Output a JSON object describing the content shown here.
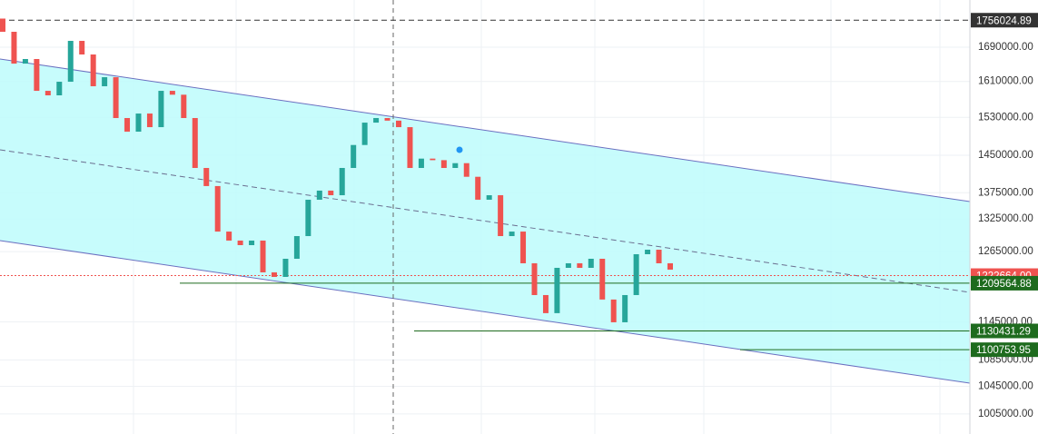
{
  "chart_data": {
    "type": "candlestick",
    "log_scale": true,
    "ylim": [
      976800,
      1807000
    ],
    "yticks": [
      {
        "value": 1690000,
        "label": "1690000.00"
      },
      {
        "value": 1610000,
        "label": "1610000.00"
      },
      {
        "value": 1530000,
        "label": "1530000.00"
      },
      {
        "value": 1450000,
        "label": "1450000.00"
      },
      {
        "value": 1375000,
        "label": "1375000.00"
      },
      {
        "value": 1325000,
        "label": "1325000.00"
      },
      {
        "value": 1265000,
        "label": "1265000.00"
      },
      {
        "value": 1145000,
        "label": "1145000.00"
      },
      {
        "value": 1085000,
        "label": "1085000.00"
      },
      {
        "value": 1045000,
        "label": "1045000.00"
      },
      {
        "value": 1005000,
        "label": "1005000.00"
      }
    ],
    "grid": true,
    "up_color": "#26a69a",
    "down_color": "#ef5350",
    "open": [
      1760000,
      1727400,
      1651200,
      1662000,
      1588700,
      1578600,
      1609300,
      1705300,
      1672700,
      1599100,
      1619700,
      1528600,
      1499400,
      1538400,
      1509000,
      1588700,
      1580000,
      1528600,
      1424200,
      1388100,
      1301400,
      1284900,
      1276600,
      1284900,
      1228300,
      1220400,
      1252200,
      1293100,
      1361500,
      1379200,
      1370200,
      1424200,
      1471300,
      1518700,
      1528600,
      1523000,
      1509000,
      1424200,
      1443200,
      1440000,
      1424200,
      1433900,
      1406500,
      1361500,
      1370200,
      1293100,
      1301400,
      1244200,
      1189400,
      1159300,
      1236200,
      1244200,
      1236200,
      1252200,
      1181900,
      1144400,
      1189400,
      1260300,
      1268400,
      1244200
    ],
    "close": [
      1727400,
      1651200,
      1662000,
      1588700,
      1578600,
      1609300,
      1705300,
      1672700,
      1599100,
      1619700,
      1528600,
      1499400,
      1538400,
      1509000,
      1588700,
      1580000,
      1528600,
      1424200,
      1388100,
      1301400,
      1284900,
      1276600,
      1284900,
      1228300,
      1220400,
      1252200,
      1293100,
      1361500,
      1379200,
      1370200,
      1424200,
      1471300,
      1518700,
      1528600,
      1523000,
      1509000,
      1424200,
      1443200,
      1440000,
      1424200,
      1433900,
      1406500,
      1361500,
      1370200,
      1293100,
      1301400,
      1244200,
      1189400,
      1159300,
      1236200,
      1244200,
      1236200,
      1252200,
      1181900,
      1144400,
      1189400,
      1260300,
      1268400,
      1244200,
      1233100
    ],
    "price_lines": [
      {
        "value": 1756024.89,
        "color": "#333333",
        "style": "dashed"
      },
      {
        "value": {
          "value": 1222664,
          "label": "1222664.00"
        },
        "color": "#ef5350",
        "style": "dotted"
      },
      {
        "value": 1209564.88,
        "color": "#1e6b1e",
        "style": "solid"
      },
      {
        "value": 1130431.29,
        "color": "#1e6b1e",
        "style": "solid"
      },
      {
        "value": 1100753.95,
        "color": "#1e6b1e",
        "style": "solid"
      }
    ]
  }
}
